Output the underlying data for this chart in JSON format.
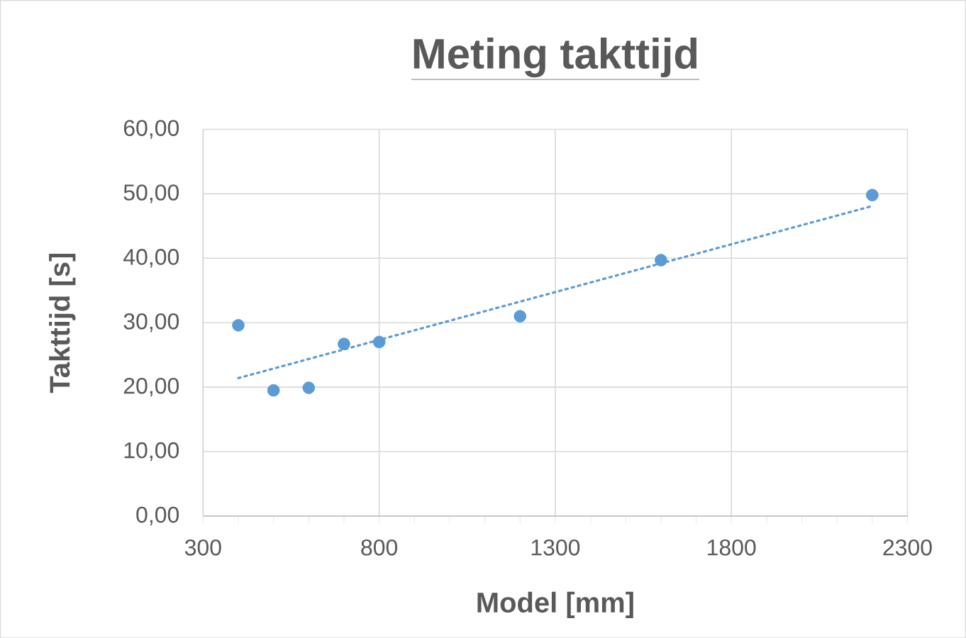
{
  "chart_data": {
    "type": "scatter",
    "title": "Meting takttijd",
    "xlabel": "Model [mm]",
    "ylabel": "Takttijd [s]",
    "xlim": [
      300,
      2300
    ],
    "xticks": [
      300,
      800,
      1300,
      1800,
      2300
    ],
    "ylim": [
      0,
      60
    ],
    "yticks": [
      {
        "value": 0,
        "label": "0,00"
      },
      {
        "value": 10,
        "label": "10,00"
      },
      {
        "value": 20,
        "label": "20,00"
      },
      {
        "value": 30,
        "label": "30,00"
      },
      {
        "value": 40,
        "label": "40,00"
      },
      {
        "value": 50,
        "label": "50,00"
      },
      {
        "value": 60,
        "label": "60,00"
      }
    ],
    "grid": true,
    "series": [
      {
        "color": "#5b9bd5",
        "marker": "circle",
        "x": [
          400,
          500,
          600,
          700,
          800,
          1200,
          1600,
          2200
        ],
        "values": [
          29.6,
          19.5,
          19.9,
          26.7,
          27.0,
          31.0,
          39.7,
          49.8
        ]
      },
      {
        "type": "line",
        "color": "#5b9bd5",
        "marker": "none",
        "line_style": "dotted",
        "x": [
          400,
          2200
        ],
        "values": [
          21.4,
          48.1
        ]
      }
    ]
  }
}
